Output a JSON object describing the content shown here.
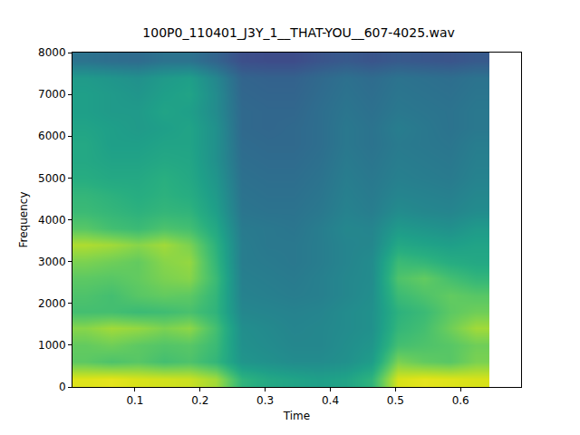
{
  "chart_data": {
    "type": "heatmap",
    "title": "100P0_110401_J3Y_1__THAT-YOU__607-4025.wav",
    "x_label": "Time",
    "y_label": "Frequency",
    "color": "viridis",
    "zlim": [
      0,
      10
    ],
    "xlim": [
      0.004,
      0.693
    ],
    "ylim": [
      0,
      8000
    ],
    "xticks": [
      0.1,
      0.2,
      0.3,
      0.4,
      0.5,
      0.6
    ],
    "yticks": [
      0,
      1000,
      2000,
      3000,
      4000,
      5000,
      6000,
      7000,
      8000
    ],
    "grid": false,
    "x": [
      0.024,
      0.064,
      0.104,
      0.144,
      0.184,
      0.224,
      0.264,
      0.304,
      0.344,
      0.384,
      0.424,
      0.464,
      0.504,
      0.544,
      0.584,
      0.624
    ],
    "y": [
      200,
      600,
      1000,
      1400,
      1800,
      2200,
      2600,
      3000,
      3400,
      3800,
      4200,
      4600,
      5000,
      5400,
      5800,
      6200,
      6600,
      7000,
      7400,
      7800
    ],
    "z": [
      [
        9.5,
        9.6,
        9.4,
        9.3,
        9.2,
        8.6,
        6.5,
        6.0,
        5.8,
        5.6,
        5.8,
        6.5,
        9.4,
        9.6,
        9.5,
        9.4
      ],
      [
        7.5,
        7.2,
        7.4,
        7.0,
        7.2,
        6.6,
        5.2,
        5.0,
        4.8,
        4.8,
        5.0,
        5.5,
        8.0,
        7.6,
        7.4,
        8.0
      ],
      [
        7.6,
        7.8,
        7.5,
        7.3,
        7.4,
        6.8,
        5.0,
        4.8,
        4.6,
        4.6,
        4.9,
        5.2,
        7.0,
        7.2,
        7.4,
        7.8
      ],
      [
        8.2,
        8.6,
        8.4,
        8.0,
        8.3,
        7.0,
        4.9,
        4.7,
        4.5,
        4.6,
        4.8,
        5.0,
        6.6,
        7.0,
        7.8,
        8.6
      ],
      [
        7.0,
        7.0,
        6.8,
        6.9,
        7.1,
        6.5,
        4.6,
        4.5,
        4.4,
        4.5,
        4.8,
        5.0,
        6.4,
        6.8,
        7.5,
        7.8
      ],
      [
        7.2,
        7.0,
        7.4,
        7.6,
        7.5,
        6.6,
        4.4,
        4.3,
        4.2,
        4.3,
        4.6,
        4.9,
        6.8,
        7.2,
        7.6,
        7.4
      ],
      [
        7.5,
        7.4,
        7.6,
        8.0,
        8.2,
        6.8,
        4.3,
        4.2,
        4.1,
        4.3,
        4.6,
        4.8,
        7.2,
        7.6,
        7.0,
        6.6
      ],
      [
        8.0,
        7.8,
        7.6,
        8.2,
        8.4,
        6.6,
        4.2,
        4.1,
        4.0,
        4.2,
        4.5,
        4.8,
        6.8,
        6.6,
        6.2,
        6.0
      ],
      [
        8.8,
        8.6,
        8.2,
        8.6,
        8.0,
        6.4,
        4.2,
        4.0,
        4.0,
        4.2,
        4.5,
        4.6,
        6.0,
        5.8,
        5.6,
        5.8
      ],
      [
        7.4,
        7.0,
        6.8,
        7.2,
        7.0,
        6.0,
        4.1,
        4.0,
        3.9,
        4.2,
        4.6,
        4.5,
        5.4,
        5.2,
        5.0,
        5.4
      ],
      [
        6.8,
        6.6,
        6.4,
        6.6,
        6.5,
        5.6,
        3.9,
        3.8,
        3.8,
        4.0,
        4.4,
        4.2,
        4.8,
        4.6,
        4.5,
        4.8
      ],
      [
        6.6,
        6.4,
        6.2,
        6.4,
        6.2,
        5.4,
        3.8,
        3.7,
        3.7,
        3.9,
        4.3,
        4.1,
        4.5,
        4.4,
        4.3,
        4.6
      ],
      [
        6.2,
        6.0,
        6.0,
        6.3,
        6.0,
        5.2,
        3.7,
        3.6,
        3.6,
        3.8,
        4.2,
        4.0,
        4.3,
        4.2,
        4.1,
        4.4
      ],
      [
        6.0,
        5.8,
        5.8,
        6.0,
        5.9,
        5.0,
        3.6,
        3.5,
        3.5,
        3.7,
        4.1,
        3.9,
        4.2,
        4.1,
        4.0,
        4.3
      ],
      [
        6.0,
        5.6,
        5.6,
        5.8,
        5.8,
        5.0,
        3.5,
        3.4,
        3.4,
        3.6,
        4.0,
        3.8,
        4.1,
        4.0,
        3.9,
        4.2
      ],
      [
        5.8,
        5.6,
        5.4,
        5.6,
        5.8,
        5.0,
        3.4,
        3.3,
        3.4,
        3.6,
        4.0,
        3.8,
        4.2,
        4.0,
        3.8,
        4.0
      ],
      [
        5.6,
        5.4,
        5.4,
        5.8,
        5.6,
        4.8,
        3.4,
        3.3,
        3.3,
        3.6,
        3.9,
        3.7,
        4.0,
        3.9,
        3.8,
        4.0
      ],
      [
        5.6,
        5.4,
        5.2,
        5.6,
        5.8,
        4.8,
        3.3,
        3.2,
        3.2,
        3.5,
        3.8,
        3.6,
        3.9,
        3.8,
        3.7,
        3.9
      ],
      [
        5.4,
        5.2,
        5.0,
        5.4,
        5.6,
        4.6,
        3.2,
        3.1,
        3.1,
        3.4,
        3.7,
        3.5,
        3.8,
        3.7,
        3.6,
        3.8
      ],
      [
        3.8,
        3.6,
        3.5,
        3.8,
        3.8,
        3.2,
        2.4,
        2.3,
        2.3,
        2.6,
        2.8,
        2.6,
        2.8,
        2.7,
        2.6,
        2.8
      ]
    ]
  }
}
